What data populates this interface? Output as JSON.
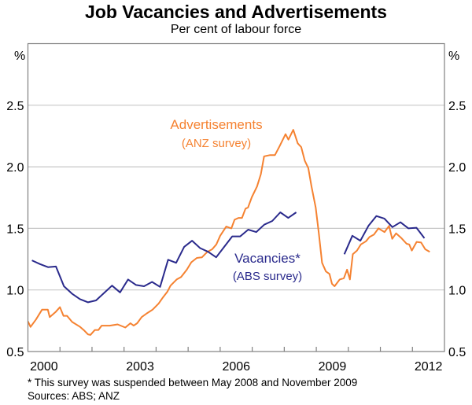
{
  "chart_data": {
    "type": "line",
    "title": "Job Vacancies and Advertisements",
    "subtitle": "Per cent of labour force",
    "ylabel_left": "%",
    "ylabel_right": "%",
    "xlim": [
      2000,
      2013
    ],
    "ylim": [
      0.5,
      3.0
    ],
    "yticks": [
      "0.5",
      "1.0",
      "1.5",
      "2.0",
      "2.5"
    ],
    "xtick_labels": [
      "2000",
      "2003",
      "2006",
      "2009",
      "2012"
    ],
    "grid": true,
    "colors": {
      "advertisements": "#F58231",
      "vacancies": "#2A2A8C",
      "grid": "#C8C8C8",
      "axis": "#808080"
    },
    "series": [
      {
        "name": "Advertisements",
        "sublabel": "(ANZ survey)",
        "points": [
          [
            2000.0,
            0.745
          ],
          [
            2000.08,
            0.7
          ],
          [
            2000.25,
            0.76
          ],
          [
            2000.44,
            0.84
          ],
          [
            2000.62,
            0.84
          ],
          [
            2000.68,
            0.78
          ],
          [
            2000.86,
            0.82
          ],
          [
            2001.0,
            0.86
          ],
          [
            2001.11,
            0.79
          ],
          [
            2001.22,
            0.79
          ],
          [
            2001.38,
            0.74
          ],
          [
            2001.63,
            0.7
          ],
          [
            2001.76,
            0.67
          ],
          [
            2001.87,
            0.64
          ],
          [
            2001.95,
            0.635
          ],
          [
            2002.09,
            0.675
          ],
          [
            2002.2,
            0.675
          ],
          [
            2002.3,
            0.71
          ],
          [
            2002.55,
            0.71
          ],
          [
            2002.8,
            0.72
          ],
          [
            2003.04,
            0.695
          ],
          [
            2003.2,
            0.73
          ],
          [
            2003.3,
            0.71
          ],
          [
            2003.41,
            0.73
          ],
          [
            2003.55,
            0.78
          ],
          [
            2003.71,
            0.81
          ],
          [
            2003.89,
            0.84
          ],
          [
            2004.08,
            0.89
          ],
          [
            2004.2,
            0.935
          ],
          [
            2004.35,
            0.985
          ],
          [
            2004.45,
            1.035
          ],
          [
            2004.64,
            1.085
          ],
          [
            2004.78,
            1.105
          ],
          [
            2004.96,
            1.165
          ],
          [
            2005.1,
            1.225
          ],
          [
            2005.27,
            1.26
          ],
          [
            2005.43,
            1.265
          ],
          [
            2005.6,
            1.31
          ],
          [
            2005.75,
            1.33
          ],
          [
            2005.88,
            1.37
          ],
          [
            2006.0,
            1.44
          ],
          [
            2006.19,
            1.515
          ],
          [
            2006.35,
            1.5
          ],
          [
            2006.45,
            1.57
          ],
          [
            2006.57,
            1.585
          ],
          [
            2006.68,
            1.585
          ],
          [
            2006.79,
            1.66
          ],
          [
            2006.87,
            1.67
          ],
          [
            2006.99,
            1.755
          ],
          [
            2007.15,
            1.84
          ],
          [
            2007.27,
            1.94
          ],
          [
            2007.37,
            2.085
          ],
          [
            2007.56,
            2.095
          ],
          [
            2007.71,
            2.095
          ],
          [
            2007.85,
            2.165
          ],
          [
            2008.04,
            2.265
          ],
          [
            2008.13,
            2.22
          ],
          [
            2008.28,
            2.3
          ],
          [
            2008.42,
            2.19
          ],
          [
            2008.53,
            2.16
          ],
          [
            2008.64,
            2.05
          ],
          [
            2008.75,
            1.99
          ],
          [
            2008.85,
            1.84
          ],
          [
            2008.98,
            1.67
          ],
          [
            2009.08,
            1.46
          ],
          [
            2009.18,
            1.22
          ],
          [
            2009.3,
            1.15
          ],
          [
            2009.41,
            1.13
          ],
          [
            2009.49,
            1.05
          ],
          [
            2009.57,
            1.03
          ],
          [
            2009.73,
            1.085
          ],
          [
            2009.86,
            1.095
          ],
          [
            2009.96,
            1.165
          ],
          [
            2010.05,
            1.085
          ],
          [
            2010.14,
            1.29
          ],
          [
            2010.27,
            1.32
          ],
          [
            2010.39,
            1.37
          ],
          [
            2010.55,
            1.395
          ],
          [
            2010.66,
            1.43
          ],
          [
            2010.8,
            1.45
          ],
          [
            2010.94,
            1.5
          ],
          [
            2011.13,
            1.47
          ],
          [
            2011.27,
            1.52
          ],
          [
            2011.37,
            1.415
          ],
          [
            2011.49,
            1.46
          ],
          [
            2011.66,
            1.42
          ],
          [
            2011.82,
            1.375
          ],
          [
            2011.9,
            1.37
          ],
          [
            2011.98,
            1.32
          ],
          [
            2012.13,
            1.39
          ],
          [
            2012.27,
            1.385
          ],
          [
            2012.4,
            1.33
          ],
          [
            2012.54,
            1.31
          ]
        ]
      },
      {
        "name": "Vacancies*",
        "sublabel": "(ABS survey)",
        "segments": [
          [
            [
              2000.125,
              1.24
            ],
            [
              2000.375,
              1.21
            ],
            [
              2000.625,
              1.185
            ],
            [
              2000.875,
              1.19
            ],
            [
              2001.125,
              1.03
            ],
            [
              2001.375,
              0.97
            ],
            [
              2001.625,
              0.925
            ],
            [
              2001.875,
              0.9
            ],
            [
              2002.125,
              0.915
            ],
            [
              2002.375,
              0.975
            ],
            [
              2002.625,
              1.035
            ],
            [
              2002.875,
              0.98
            ],
            [
              2003.125,
              1.085
            ],
            [
              2003.375,
              1.04
            ],
            [
              2003.625,
              1.03
            ],
            [
              2003.875,
              1.065
            ],
            [
              2004.125,
              1.025
            ],
            [
              2004.375,
              1.245
            ],
            [
              2004.625,
              1.22
            ],
            [
              2004.875,
              1.35
            ],
            [
              2005.125,
              1.4
            ],
            [
              2005.375,
              1.34
            ],
            [
              2005.625,
              1.31
            ],
            [
              2005.875,
              1.265
            ],
            [
              2006.125,
              1.35
            ],
            [
              2006.375,
              1.435
            ],
            [
              2006.625,
              1.435
            ],
            [
              2006.875,
              1.49
            ],
            [
              2007.125,
              1.47
            ],
            [
              2007.375,
              1.53
            ],
            [
              2007.625,
              1.56
            ],
            [
              2007.875,
              1.63
            ],
            [
              2008.125,
              1.585
            ],
            [
              2008.375,
              1.63
            ]
          ],
          [
            [
              2009.875,
              1.29
            ],
            [
              2010.125,
              1.44
            ],
            [
              2010.375,
              1.4
            ],
            [
              2010.625,
              1.52
            ],
            [
              2010.875,
              1.6
            ],
            [
              2011.125,
              1.58
            ],
            [
              2011.375,
              1.51
            ],
            [
              2011.625,
              1.55
            ],
            [
              2011.875,
              1.5
            ],
            [
              2012.125,
              1.505
            ],
            [
              2012.375,
              1.42
            ]
          ]
        ]
      }
    ],
    "footnotes": [
      "*    This survey was suspended between May 2008 and November 2009",
      "Sources: ABS; ANZ"
    ]
  }
}
